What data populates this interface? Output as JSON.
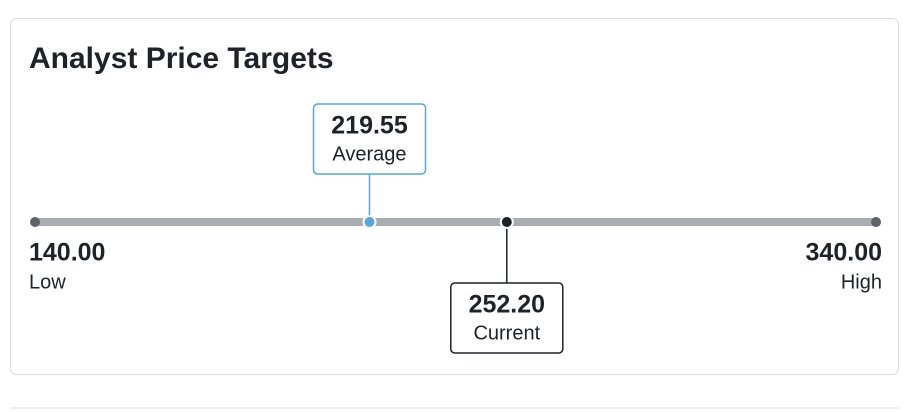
{
  "chart_data": {
    "type": "range",
    "title": "Analyst Price Targets",
    "ends": [
      {
        "name": "Low",
        "value": 140,
        "value_label": "140.00"
      },
      {
        "name": "High",
        "value": 340,
        "value_label": "340.00"
      }
    ],
    "end_color": "#5f6368",
    "track_color": "#a9adb1",
    "callouts": [
      {
        "name": "Average",
        "value": 219.55,
        "value_label": "219.55",
        "color": "#5aa5d8"
      },
      {
        "name": "Current",
        "value": 252.2,
        "value_label": "252.20",
        "color": "#1f2328"
      }
    ]
  }
}
